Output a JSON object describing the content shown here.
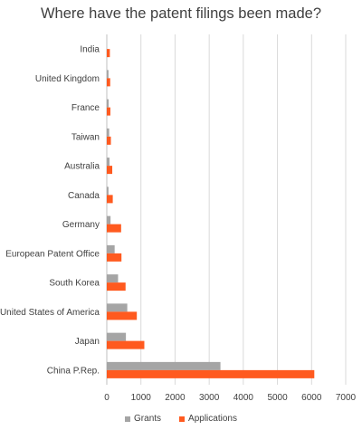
{
  "chart_data": {
    "type": "bar",
    "orientation": "horizontal",
    "title": "Where have the patent filings been made?",
    "xlabel": "",
    "ylabel": "",
    "categories": [
      "India",
      "United Kingdom",
      "France",
      "Taiwan",
      "Australia",
      "Canada",
      "Germany",
      "European Patent Office",
      "South Korea",
      "United States of America",
      "Japan",
      "China P.Rep."
    ],
    "series": [
      {
        "name": "Grants",
        "color": "#a5a5a5",
        "values": [
          0,
          50,
          55,
          70,
          80,
          50,
          110,
          230,
          330,
          600,
          560,
          3330
        ]
      },
      {
        "name": "Applications",
        "color": "#ff5a1f",
        "values": [
          90,
          100,
          105,
          120,
          160,
          175,
          420,
          430,
          550,
          880,
          1100,
          6080
        ]
      }
    ],
    "xlim": [
      0,
      7000
    ],
    "xticks": [
      0,
      1000,
      2000,
      3000,
      4000,
      5000,
      6000,
      7000
    ],
    "grid": "vertical",
    "legend_position": "bottom"
  }
}
